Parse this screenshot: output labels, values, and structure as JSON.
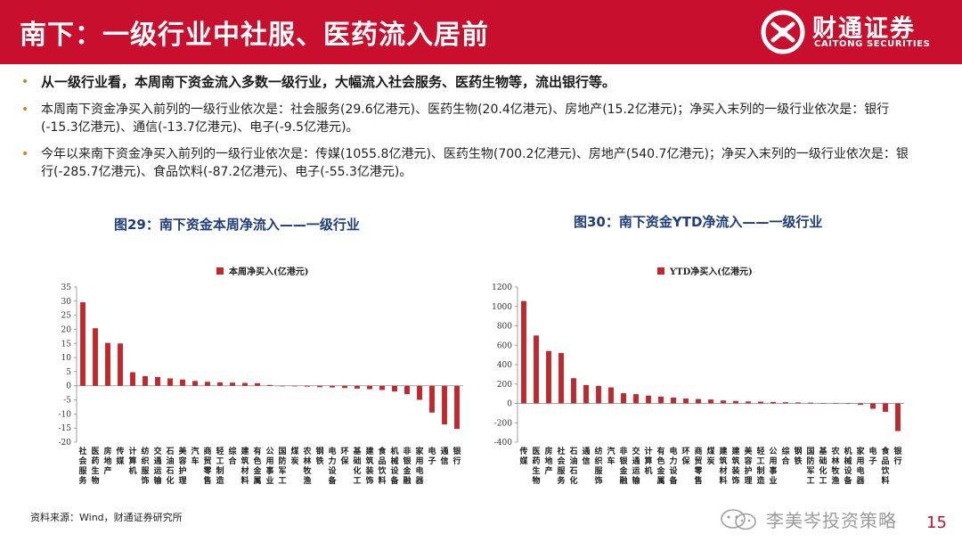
{
  "header": {
    "title": "南下：一级行业中社服、医药流入居前",
    "logo_name": "财通证券",
    "logo_sub": "CAITONG SECURITIES"
  },
  "main": {
    "bullets": [
      "从一级行业看，本周南下资金流入多数一级行业，大幅流入社会服务、医药生物等，流出银行等。",
      "本周南下资金净买入前列的一级行业依次是：社会服务(29.6亿港元)、医药生物(20.4亿港元)、房地产(15.2亿港元)；净买入末列的一级行业依次是：银行(-15.3亿港元)、通信(-13.7亿港元)、电子(-9.5亿港元)。",
      "今年以来南下资金净买入前列的一级行业依次是：传媒(1055.8亿港元)、医药生物(700.2亿港元)、房地产(540.7亿港元)；净买入末列的一级行业依次是：银行(-285.7亿港元)、食品饮料(-87.2亿港元)、电子(-55.3亿港元)。"
    ]
  },
  "footer": {
    "source": "资料来源：Wind，财通证券研究所",
    "watermark": "李美岑投资策略",
    "page": "15"
  },
  "colors": {
    "brand": "#c8102e",
    "bar": "#c0282d",
    "bullet_dot": "#e07a1f",
    "chart_title": "#1f3d7a"
  },
  "chart_data": [
    {
      "type": "bar",
      "figure_title": "图29：南下资金本周净流入——一级行业",
      "title": "",
      "legend": "本周净买入(亿港元)",
      "legend_position": "top-center",
      "ylim": [
        -20,
        35
      ],
      "yticks": [
        -20,
        -15,
        -10,
        -5,
        0,
        5,
        10,
        15,
        20,
        25,
        30,
        35
      ],
      "grid": false,
      "categories": [
        "社会服务",
        "医药生物",
        "房地产",
        "传媒",
        "计算机",
        "纺织服饰",
        "交通运输",
        "石油石化",
        "美容护理",
        "汽车",
        "商贸零售",
        "轻工制造",
        "综合",
        "建筑材料",
        "有色金属",
        "公用事业",
        "国防军工",
        "煤炭",
        "农林牧渔",
        "钢铁",
        "电力设备",
        "环保",
        "基础化工",
        "建筑装饰",
        "食品饮料",
        "机械设备",
        "非银金融",
        "家用电器",
        "电子",
        "通信",
        "银行"
      ],
      "values": [
        29.6,
        20.4,
        15.2,
        15.0,
        4.8,
        3.4,
        3.1,
        2.6,
        2.2,
        1.7,
        1.4,
        1.2,
        1.1,
        1.0,
        0.9,
        0.3,
        0.0,
        -0.2,
        -0.3,
        -0.5,
        -0.6,
        -0.8,
        -1.0,
        -1.2,
        -1.5,
        -2.0,
        -3.0,
        -5.0,
        -9.5,
        -13.7,
        -15.3
      ]
    },
    {
      "type": "bar",
      "figure_title": "图30：南下资金YTD净流入——一级行业",
      "title": "",
      "legend": "YTD净买入(亿港元)",
      "legend_position": "top-center",
      "ylim": [
        -400,
        1200
      ],
      "yticks": [
        -400,
        -200,
        0,
        200,
        400,
        600,
        800,
        1000,
        1200
      ],
      "grid": false,
      "categories": [
        "传媒",
        "医药生物",
        "房地产",
        "社会服务",
        "石油石化",
        "通信",
        "纺织服饰",
        "汽车",
        "非银金融",
        "交通运输",
        "计算机",
        "有色金属",
        "电力设备",
        "环保",
        "商贸零售",
        "煤炭",
        "建筑材料",
        "建筑装饰",
        "美容护理",
        "轻工制造",
        "公用事业",
        "综合",
        "钢铁",
        "国防军工",
        "基础化工",
        "农林牧渔",
        "机械设备",
        "家用电器",
        "电子",
        "食品饮料",
        "银行"
      ],
      "values": [
        1055.8,
        700.2,
        540.7,
        520,
        260,
        190,
        180,
        165,
        105,
        95,
        80,
        70,
        60,
        50,
        45,
        40,
        30,
        25,
        20,
        18,
        15,
        12,
        10,
        8,
        5,
        3,
        0,
        -15,
        -55.3,
        -87.2,
        -285.7
      ]
    }
  ]
}
